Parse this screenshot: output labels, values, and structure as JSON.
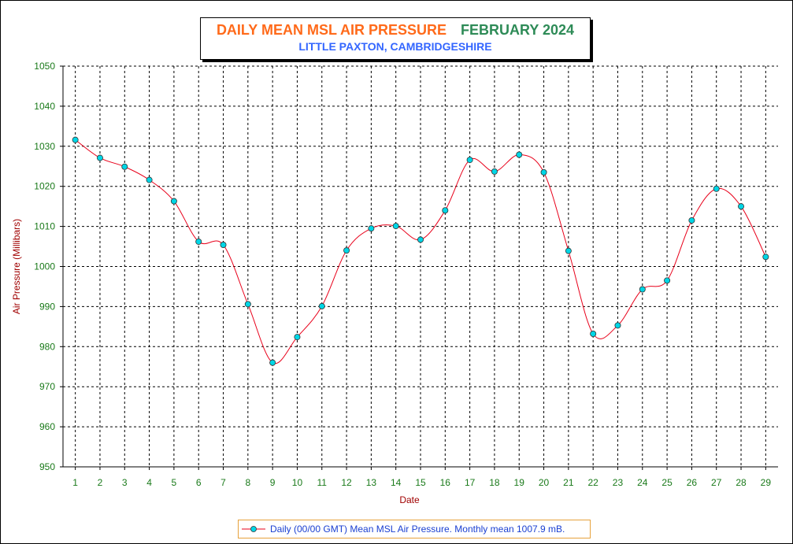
{
  "title": {
    "main": "DAILY MEAN MSL AIR PRESSURE",
    "month": "FEBRUARY 2024",
    "subtitle": "LITTLE PAXTON, CAMBRIDGESHIRE"
  },
  "colors": {
    "title_main": "#ff6a1a",
    "title_month": "#2e8b57",
    "subtitle": "#3366ff",
    "line": "#e8001a",
    "marker_fill": "#00d6e6",
    "axis_text": "#1a7a1a",
    "axis_label": "#a00000",
    "legend_text": "#1a3fd1",
    "legend_border": "#e6a23c"
  },
  "chart_data": {
    "type": "line",
    "xlabel": "Date",
    "ylabel": "Air Pressure (Millibars)",
    "ylim": [
      950,
      1050
    ],
    "yticks": [
      950,
      960,
      970,
      980,
      990,
      1000,
      1010,
      1020,
      1030,
      1040,
      1050
    ],
    "grid": true,
    "legend_position": "bottom-center",
    "x": [
      1,
      2,
      3,
      4,
      5,
      6,
      7,
      8,
      9,
      10,
      11,
      12,
      13,
      14,
      15,
      16,
      17,
      18,
      19,
      20,
      21,
      22,
      23,
      24,
      25,
      26,
      27,
      28,
      29
    ],
    "series": [
      {
        "name": "Daily (00/00 GMT) Mean MSL Air Pressure. Monthly mean 1007.9 mB.",
        "values": [
          1031.6,
          1027.1,
          1024.9,
          1021.6,
          1016.3,
          1006.2,
          1005.4,
          990.6,
          976.0,
          982.4,
          990.1,
          1004.0,
          1009.5,
          1010.1,
          1006.7,
          1014.0,
          1026.6,
          1023.7,
          1027.9,
          1023.5,
          1003.9,
          983.2,
          985.3,
          994.3,
          996.5,
          1011.5,
          1019.4,
          1015.0,
          1002.4
        ]
      }
    ]
  }
}
